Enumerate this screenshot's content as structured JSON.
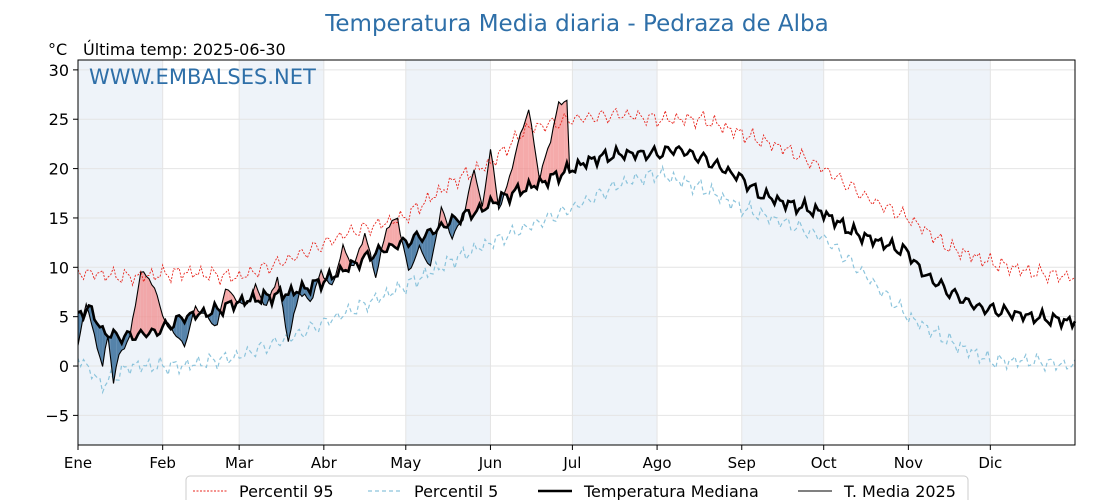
{
  "chart_data": {
    "type": "line",
    "title": "Temperatura Media diaria - Pedraza de Alba",
    "y_unit": "°C",
    "last_temp_label": "Última temp: 2025-06-30",
    "watermark": "WWW.EMBALSES.NET",
    "ylim": [
      -8,
      31
    ],
    "yticks": [
      30,
      25,
      20,
      15,
      10,
      5,
      0,
      -5
    ],
    "ytick_labels": [
      "30",
      "25",
      "20",
      "15",
      "10",
      "5",
      "0",
      "−5"
    ],
    "months": [
      "Ene",
      "Feb",
      "Mar",
      "Abr",
      "May",
      "Jun",
      "Jul",
      "Ago",
      "Sep",
      "Oct",
      "Nov",
      "Dic"
    ],
    "month_start_days": [
      1,
      32,
      60,
      91,
      121,
      152,
      182,
      213,
      244,
      274,
      305,
      335
    ],
    "x_range_days": [
      1,
      366
    ],
    "grid": true,
    "legend_position": "bottom",
    "colors": {
      "p95": "#e8241c",
      "p5": "#8cc4dc",
      "median": "#000000",
      "current": "#000000",
      "above_fill": "#f28e8e",
      "below_fill": "#3a6e9c",
      "band": "#eef3f9",
      "title": "#2e6fa8"
    },
    "series": [
      {
        "name": "Percentil 95",
        "style": "dotted-red",
        "anchor_days": [
          1,
          20,
          40,
          60,
          80,
          100,
          120,
          140,
          152,
          165,
          182,
          200,
          213,
          230,
          244,
          260,
          274,
          290,
          305,
          320,
          335,
          350,
          365
        ],
        "anchor_values": [
          9.5,
          9,
          9.5,
          9,
          11,
          13.5,
          15,
          19,
          20.5,
          24,
          25,
          25.5,
          25,
          25,
          23.5,
          22,
          20,
          17,
          15,
          12,
          10.5,
          9.5,
          9
        ]
      },
      {
        "name": "Percentil 5",
        "style": "dashed-blue",
        "anchor_days": [
          1,
          10,
          20,
          40,
          60,
          80,
          100,
          120,
          140,
          152,
          165,
          182,
          200,
          213,
          230,
          244,
          260,
          274,
          290,
          305,
          320,
          335,
          350,
          365
        ],
        "anchor_values": [
          1,
          -2,
          0,
          0,
          1,
          3,
          5.5,
          8,
          11,
          12.5,
          14,
          16,
          18.5,
          19.5,
          18,
          16,
          14.5,
          13,
          9,
          5,
          2.5,
          0.5,
          0.5,
          0
        ]
      },
      {
        "name": "Temperatura Mediana",
        "style": "solid-thick",
        "anchor_days": [
          1,
          5,
          10,
          15,
          20,
          30,
          40,
          50,
          60,
          70,
          80,
          90,
          100,
          110,
          120,
          130,
          140,
          150,
          152,
          160,
          170,
          182,
          190,
          200,
          213,
          220,
          230,
          244,
          250,
          260,
          274,
          285,
          295,
          305,
          310,
          320,
          330,
          340,
          350,
          365
        ],
        "anchor_values": [
          5,
          6,
          3.5,
          3,
          3,
          3.5,
          5,
          5.5,
          6.5,
          7,
          7.5,
          8.5,
          10,
          11.5,
          12.5,
          13.5,
          15,
          16,
          16.5,
          17.5,
          18.5,
          20,
          21,
          21.5,
          21.5,
          22,
          21,
          19,
          17.5,
          16.5,
          15.5,
          13.5,
          12.5,
          11.5,
          9.5,
          7.5,
          6,
          5.5,
          5,
          4.5
        ]
      },
      {
        "name": "T. Media 2025",
        "style": "solid-thin",
        "x_start": "2025-01-01",
        "x_end": "2025-06-30",
        "anchor_days": [
          1,
          4,
          7,
          10,
          12,
          14,
          16,
          20,
          24,
          27,
          30,
          33,
          36,
          40,
          44,
          48,
          52,
          55,
          58,
          62,
          66,
          70,
          74,
          78,
          82,
          86,
          90,
          94,
          98,
          102,
          106,
          110,
          114,
          118,
          122,
          126,
          130,
          134,
          138,
          142,
          146,
          149,
          152,
          155,
          158,
          162,
          166,
          170,
          174,
          177,
          180,
          181
        ],
        "anchor_values": [
          2,
          6.5,
          3,
          0,
          3,
          -1.5,
          1,
          3,
          9.5,
          9,
          7,
          4.5,
          3.5,
          2,
          6,
          5,
          4,
          8,
          7,
          6,
          8,
          6,
          9,
          2.5,
          7.5,
          6.5,
          9.5,
          8,
          12,
          10,
          13.5,
          9,
          14,
          15,
          9.5,
          12,
          10,
          16,
          13,
          15,
          20,
          16,
          22,
          16,
          18,
          22.5,
          26,
          19,
          23,
          26.5,
          27,
          19.5
        ]
      }
    ]
  },
  "legend": {
    "items": [
      {
        "key": "p95",
        "label": "Percentil 95"
      },
      {
        "key": "p5",
        "label": "Percentil 5"
      },
      {
        "key": "median",
        "label": "Temperatura Mediana"
      },
      {
        "key": "current",
        "label": "T. Media 2025"
      }
    ]
  }
}
